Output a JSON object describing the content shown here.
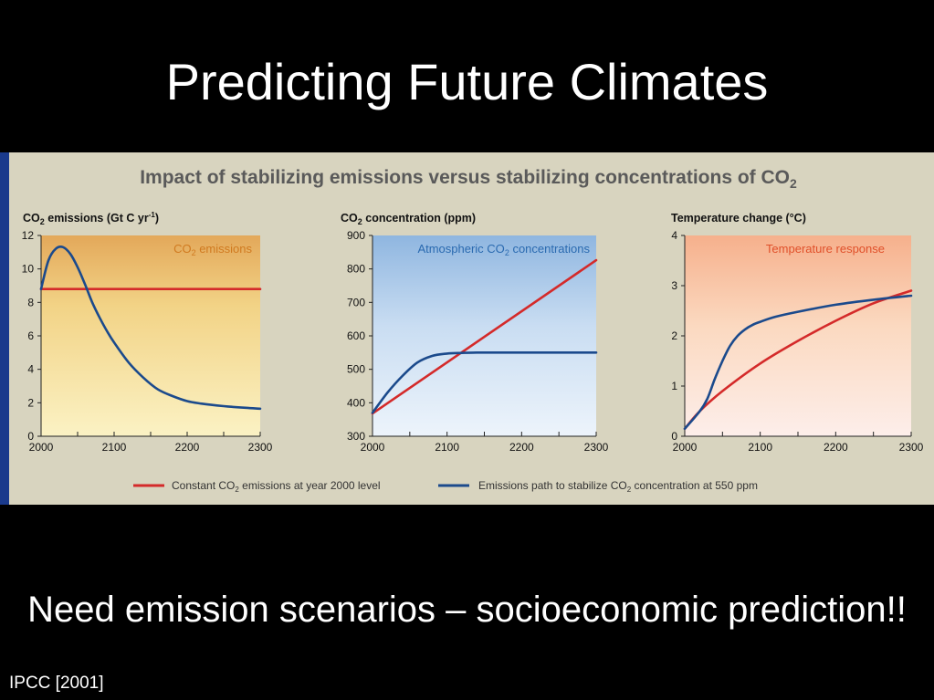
{
  "slide": {
    "title": "Predicting Future Climates",
    "caption": "Need emission scenarios – socioeconomic prediction!!",
    "source": "IPCC [2001]"
  },
  "figure": {
    "heading": {
      "main": "Impact of stabilizing emissions versus stabilizing concentrations of CO",
      "sub": "2"
    },
    "legend": [
      {
        "pre": "Constant CO",
        "sub": "2",
        "post": " emissions at year 2000 level",
        "color": "#d42a2a"
      },
      {
        "pre": "Emissions path to stabilize CO",
        "sub": "2",
        "post": " concentration at 550 ppm",
        "color": "#1b4a8c"
      }
    ]
  },
  "colors": {
    "red_series": "#d42a2a",
    "blue_series": "#1b4a8c",
    "panel_bg": "#d8d4bf",
    "panel_border": "#1a3a8c",
    "heading_text": "#5a5a5a"
  },
  "chart_data": [
    {
      "type": "line",
      "title_parts": {
        "pre": "CO",
        "sub": "2",
        "mid": " emissions (Gt C yr",
        "sup": "-1",
        "post": ")"
      },
      "inset_label": {
        "pre": "CO",
        "sub": "2",
        "post": " emissions"
      },
      "inset_color": "#d07a20",
      "xlim": [
        2000,
        2300
      ],
      "ylim": [
        0,
        12
      ],
      "xticks": [
        2000,
        2100,
        2200,
        2300
      ],
      "yticks": [
        0,
        2,
        4,
        6,
        8,
        10,
        12
      ],
      "series": [
        {
          "color": "#d42a2a",
          "x": [
            2000,
            2300
          ],
          "y": [
            8.8,
            8.8
          ]
        },
        {
          "color": "#1b4a8c",
          "x": [
            2000,
            2010,
            2020,
            2030,
            2040,
            2050,
            2060,
            2070,
            2080,
            2090,
            2100,
            2120,
            2140,
            2160,
            2180,
            2200,
            2220,
            2250,
            2280,
            2300
          ],
          "y": [
            8.8,
            10.5,
            11.2,
            11.3,
            10.9,
            10.1,
            9.1,
            8.0,
            7.1,
            6.3,
            5.6,
            4.4,
            3.5,
            2.8,
            2.4,
            2.1,
            1.95,
            1.8,
            1.7,
            1.65
          ]
        }
      ]
    },
    {
      "type": "line",
      "title_parts": {
        "pre": "CO",
        "sub": "2",
        "mid": " concentration (ppm)",
        "sup": "",
        "post": ""
      },
      "inset_label": {
        "pre": "Atmospheric CO",
        "sub": "2",
        "post": " concentrations"
      },
      "inset_color": "#2a6ab0",
      "xlim": [
        2000,
        2300
      ],
      "ylim": [
        300,
        900
      ],
      "xticks": [
        2000,
        2100,
        2200,
        2300
      ],
      "yticks": [
        300,
        400,
        500,
        600,
        700,
        800,
        900
      ],
      "series": [
        {
          "color": "#d42a2a",
          "x": [
            2000,
            2300
          ],
          "y": [
            368,
            826
          ]
        },
        {
          "color": "#1b4a8c",
          "x": [
            2000,
            2020,
            2040,
            2060,
            2080,
            2100,
            2120,
            2140,
            2160,
            2300
          ],
          "y": [
            370,
            430,
            480,
            520,
            540,
            547,
            549,
            550,
            550,
            550
          ]
        }
      ]
    },
    {
      "type": "line",
      "title_parts": {
        "pre": "Temperature change (°C)",
        "sub": "",
        "mid": "",
        "sup": "",
        "post": ""
      },
      "inset_label": {
        "pre": "Temperature response",
        "sub": "",
        "post": ""
      },
      "inset_color": "#e0502a",
      "xlim": [
        2000,
        2300
      ],
      "ylim": [
        0,
        4
      ],
      "xticks": [
        2000,
        2100,
        2200,
        2300
      ],
      "yticks": [
        0,
        1,
        2,
        3,
        4
      ],
      "series": [
        {
          "color": "#d42a2a",
          "x": [
            2000,
            2020,
            2050,
            2100,
            2150,
            2200,
            2250,
            2300
          ],
          "y": [
            0.15,
            0.5,
            0.9,
            1.45,
            1.9,
            2.3,
            2.65,
            2.9
          ]
        },
        {
          "color": "#1b4a8c",
          "x": [
            2000,
            2020,
            2030,
            2040,
            2050,
            2060,
            2070,
            2080,
            2090,
            2100,
            2120,
            2150,
            2200,
            2250,
            2300
          ],
          "y": [
            0.15,
            0.5,
            0.75,
            1.15,
            1.5,
            1.8,
            2.0,
            2.13,
            2.22,
            2.28,
            2.38,
            2.48,
            2.62,
            2.72,
            2.8
          ]
        }
      ]
    }
  ]
}
